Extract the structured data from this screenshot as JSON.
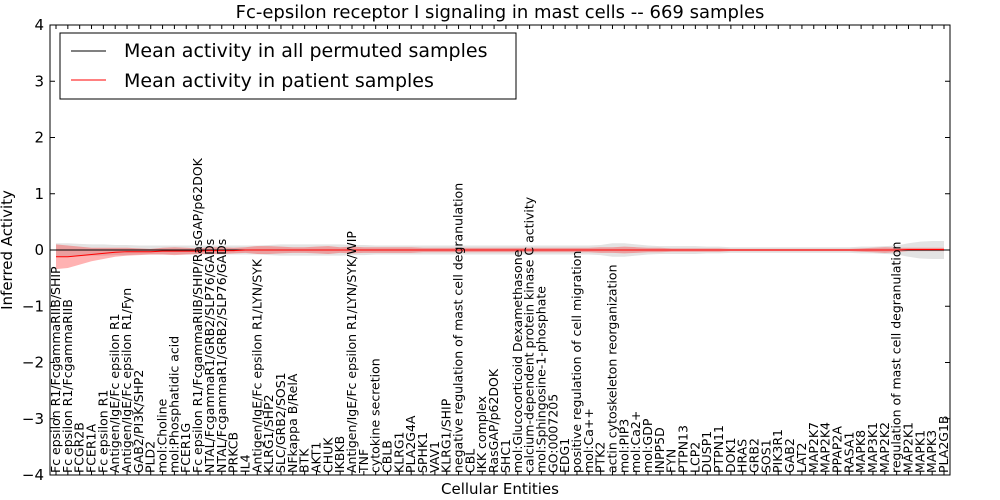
{
  "chart_data": {
    "type": "line",
    "title": "Fc-epsilon receptor I signaling in mast cells -- 669 samples",
    "xlabel": "Cellular Entities",
    "ylabel": "Inferred Activity",
    "ylim": [
      -4,
      4
    ],
    "yticks": [
      -4,
      -3,
      -2,
      -1,
      0,
      1,
      2,
      3,
      4
    ],
    "legend_position": "top-left",
    "categories": [
      "Fc epsilon R1/FcgammaRIIB/SHIP",
      "Fc epsilon R1/FcgammaRIIB",
      "FCGR2B",
      "FCER1A",
      "Fc epsilon R1",
      "Antigen/IgE/Fc epsilon R1",
      "Antigen/IgE/Fc epsilon R1/Fyn",
      "GAB2/PI3K/SHP2",
      "PLD2",
      "mol:Choline",
      "mol:Phosphatidic acid",
      "FCER1G",
      "Fc epsilon R1/FcgammaRIIB/SHIP/RasGAP/p62DOK",
      "NTAL/FcgammaR1/GRB2/SLP76/GADs",
      "NTAL/FcgammaR1/GRB2/SLP76/GADs",
      "PRKCB",
      "IL4",
      "Antigen/IgE/Fc epsilon R1/LYN/SYK",
      "KLRG1/SHP2",
      "SLC/GRB2/SOS1",
      "NFkappa B/RelA",
      "BTK",
      "AKT1",
      "CHUK",
      "IKBKB",
      "Antigen/IgE/Fc epsilon R1/LYN/SYK/WIP",
      "TNF",
      "cytokine secretion",
      "CBLB",
      "KLRG1",
      "PLA2G4A",
      "SPHK1",
      "VAV1",
      "KLRG1/SHIP",
      "negative regulation of mast cell degranulation",
      "CBL",
      "IKK complex",
      "RasGAP/p62DOK",
      "SHC1",
      "mol:Glucocorticoid Dexamethasone",
      "calcium-dependent protein kinase C activity",
      "mol:Sphingosine-1-phosphate",
      "GO:0007205",
      "EDG1",
      "positive regulation of cell migration",
      "mol:Ca++",
      "PTK2",
      "actin cytoskeleton reorganization",
      "mol:PIP3",
      "mol:Ca2+",
      "mol:GDP",
      "INPP5D",
      "FYN",
      "PTPN13",
      "LCP2",
      "DUSP1",
      "PTPN11",
      "DOK1",
      "HRAS",
      "GRB2",
      "SOS1",
      "PIK3R1",
      "GAB2",
      "LAT2",
      "MAP2K7",
      "MAP2K4",
      "PPAP2A",
      "RASA1",
      "MAPK8",
      "MAP3K1",
      "MAP2K2",
      "regulation of mast cell degranulation",
      "MAP2K1",
      "MAPK1",
      "MAPK3",
      "PLA2G1B"
    ],
    "series": [
      {
        "name": "Mean activity in all permuted samples",
        "color": "#000000",
        "values": [
          0.0,
          0.0,
          0.0,
          0.0,
          0.0,
          0.0,
          0.0,
          0.0,
          0.0,
          0.0,
          0.0,
          0.0,
          0.0,
          0.0,
          0.0,
          0.0,
          0.0,
          0.0,
          0.0,
          0.0,
          0.0,
          0.0,
          0.0,
          0.0,
          0.0,
          0.0,
          0.0,
          0.0,
          0.0,
          0.0,
          0.0,
          0.0,
          0.0,
          0.0,
          0.0,
          0.0,
          0.0,
          0.0,
          0.0,
          0.0,
          0.0,
          0.0,
          0.0,
          0.0,
          0.0,
          0.0,
          0.0,
          0.0,
          0.0,
          0.0,
          0.0,
          0.0,
          0.0,
          0.0,
          0.0,
          0.0,
          0.0,
          0.0,
          0.0,
          0.0,
          0.0,
          0.0,
          0.0,
          0.0,
          0.0,
          0.0,
          0.0,
          0.0,
          0.0,
          0.0,
          0.0,
          0.0,
          0.0,
          0.0,
          0.0,
          0.0
        ],
        "band": [
          0.12,
          0.12,
          0.11,
          0.1,
          0.1,
          0.09,
          0.09,
          0.08,
          0.08,
          0.08,
          0.08,
          0.08,
          0.08,
          0.08,
          0.08,
          0.08,
          0.08,
          0.08,
          0.09,
          0.1,
          0.1,
          0.1,
          0.1,
          0.1,
          0.1,
          0.09,
          0.09,
          0.08,
          0.08,
          0.08,
          0.08,
          0.08,
          0.08,
          0.08,
          0.08,
          0.08,
          0.08,
          0.08,
          0.08,
          0.08,
          0.08,
          0.08,
          0.08,
          0.08,
          0.08,
          0.08,
          0.09,
          0.12,
          0.12,
          0.1,
          0.08,
          0.07,
          0.07,
          0.07,
          0.07,
          0.06,
          0.06,
          0.05,
          0.05,
          0.05,
          0.05,
          0.05,
          0.05,
          0.05,
          0.05,
          0.05,
          0.05,
          0.05,
          0.06,
          0.06,
          0.07,
          0.08,
          0.12,
          0.15,
          0.16,
          0.16
        ]
      },
      {
        "name": "Mean activity in patient samples",
        "color": "#ff0000",
        "values": [
          -0.12,
          -0.12,
          -0.1,
          -0.08,
          -0.06,
          -0.04,
          -0.03,
          -0.03,
          -0.03,
          -0.02,
          -0.02,
          -0.02,
          -0.02,
          -0.01,
          -0.01,
          -0.01,
          0.0,
          0.0,
          0.0,
          0.0,
          0.0,
          0.0,
          0.0,
          0.0,
          0.0,
          0.0,
          0.0,
          0.0,
          0.0,
          0.0,
          0.0,
          0.0,
          0.0,
          0.0,
          0.0,
          0.0,
          0.0,
          0.0,
          0.0,
          0.0,
          0.0,
          0.0,
          0.0,
          0.0,
          0.0,
          0.0,
          0.0,
          0.0,
          0.0,
          0.0,
          0.0,
          0.0,
          0.0,
          0.0,
          0.0,
          0.0,
          0.0,
          0.0,
          0.0,
          0.0,
          0.0,
          0.0,
          0.0,
          0.0,
          0.0,
          0.0,
          0.0,
          0.0,
          0.0,
          0.0,
          0.0,
          0.0,
          0.01,
          0.01,
          0.01,
          0.01
        ],
        "band": [
          0.22,
          0.2,
          0.16,
          0.12,
          0.1,
          0.08,
          0.07,
          0.06,
          0.05,
          0.06,
          0.07,
          0.06,
          0.05,
          0.06,
          0.06,
          0.05,
          0.05,
          0.07,
          0.07,
          0.06,
          0.05,
          0.05,
          0.06,
          0.07,
          0.05,
          0.06,
          0.05,
          0.05,
          0.05,
          0.05,
          0.05,
          0.04,
          0.04,
          0.04,
          0.04,
          0.04,
          0.04,
          0.04,
          0.04,
          0.04,
          0.04,
          0.04,
          0.04,
          0.04,
          0.04,
          0.04,
          0.05,
          0.05,
          0.06,
          0.05,
          0.04,
          0.04,
          0.03,
          0.03,
          0.03,
          0.03,
          0.03,
          0.02,
          0.02,
          0.02,
          0.02,
          0.02,
          0.02,
          0.02,
          0.02,
          0.02,
          0.02,
          0.02,
          0.03,
          0.04,
          0.05,
          0.04,
          0.03,
          0.03,
          0.03,
          0.03
        ]
      }
    ]
  }
}
